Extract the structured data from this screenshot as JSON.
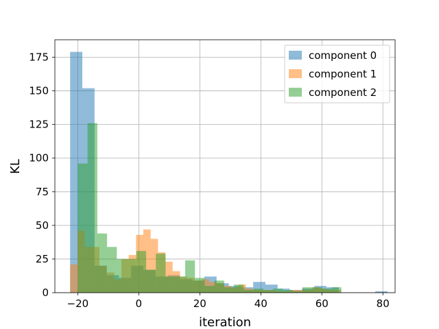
{
  "chart_data": {
    "type": "histogram",
    "title": "",
    "xlabel": "iteration",
    "ylabel": "KL",
    "xlim": [
      -27.5,
      84
    ],
    "ylim": [
      0,
      188
    ],
    "xticks": [
      -20,
      0,
      20,
      40,
      60,
      80
    ],
    "yticks": [
      0,
      25,
      50,
      75,
      100,
      125,
      150,
      175
    ],
    "grid": true,
    "legend": "top-right",
    "alpha": 0.5,
    "series": [
      {
        "name": "component 0",
        "color": "#1f77b4",
        "bins": [
          [
            -22.5,
            -18.5
          ],
          [
            -18.5,
            -14.5
          ],
          [
            -14.5,
            -10.5
          ],
          [
            -10.5,
            -6.5
          ],
          [
            -6.5,
            -2.5
          ],
          [
            -2.5,
            1.5
          ],
          [
            1.5,
            5.5
          ],
          [
            5.5,
            9.5
          ],
          [
            9.5,
            13.5
          ],
          [
            13.5,
            17.5
          ],
          [
            17.5,
            21.5
          ],
          [
            21.5,
            25.5
          ],
          [
            25.5,
            29.5
          ],
          [
            29.5,
            33.5
          ],
          [
            33.5,
            37.5
          ],
          [
            37.5,
            41.5
          ],
          [
            41.5,
            45.5
          ],
          [
            45.5,
            49.5
          ],
          [
            49.5,
            53.5
          ],
          [
            53.5,
            57.5
          ],
          [
            57.5,
            61.5
          ],
          [
            61.5,
            65.5
          ],
          [
            65.5,
            69.5
          ],
          [
            69.5,
            73.5
          ],
          [
            73.5,
            77.5
          ],
          [
            77.5,
            81.5
          ]
        ],
        "values": [
          179,
          152,
          20,
          13,
          11,
          20,
          17,
          12,
          13,
          10,
          9,
          12,
          7,
          5,
          4,
          8,
          6,
          3,
          2,
          3,
          5,
          4,
          0,
          0,
          0,
          1
        ]
      },
      {
        "name": "component 1",
        "color": "#ff7f0e",
        "bins": [
          [
            -22.5,
            -20.1
          ],
          [
            -20.1,
            -17.7
          ],
          [
            -17.7,
            -15.3
          ],
          [
            -15.3,
            -12.9
          ],
          [
            -12.9,
            -10.5
          ],
          [
            -10.5,
            -8.1
          ],
          [
            -8.1,
            -5.7
          ],
          [
            -5.7,
            -3.3
          ],
          [
            -3.3,
            -0.9
          ],
          [
            -0.9,
            1.5
          ],
          [
            1.5,
            3.9
          ],
          [
            3.9,
            6.3
          ],
          [
            6.3,
            8.7
          ],
          [
            8.7,
            11.1
          ],
          [
            11.1,
            13.5
          ],
          [
            13.5,
            15.9
          ],
          [
            15.9,
            18.3
          ],
          [
            18.3,
            20.7
          ],
          [
            20.7,
            23.1
          ],
          [
            23.1,
            25.5
          ],
          [
            25.5,
            27.9
          ],
          [
            27.9,
            30.3
          ],
          [
            30.3,
            32.7
          ],
          [
            32.7,
            35.1
          ],
          [
            35.1,
            37.5
          ],
          [
            37.5,
            39.9
          ],
          [
            39.9,
            42.3
          ],
          [
            42.3,
            44.7
          ],
          [
            44.7,
            47.1
          ],
          [
            47.1,
            49.5
          ],
          [
            49.5,
            51.9
          ],
          [
            51.9,
            54.3
          ],
          [
            54.3,
            56.7
          ],
          [
            56.7,
            59.1
          ],
          [
            59.1,
            61.5
          ],
          [
            61.5,
            63.9
          ],
          [
            63.9,
            66.3
          ]
        ],
        "values": [
          21,
          46,
          34,
          34,
          20,
          15,
          10,
          25,
          28,
          43,
          47,
          40,
          30,
          23,
          16,
          12,
          11,
          9,
          10,
          8,
          7,
          5,
          4,
          6,
          3,
          2,
          2,
          2,
          1,
          1,
          2,
          2,
          2,
          4,
          3,
          2,
          2
        ]
      },
      {
        "name": "component 2",
        "color": "#2ca02c",
        "bins": [
          [
            -20,
            -16.8
          ],
          [
            -16.8,
            -13.6
          ],
          [
            -13.6,
            -10.4
          ],
          [
            -10.4,
            -7.2
          ],
          [
            -7.2,
            -4.0
          ],
          [
            -4.0,
            -0.8
          ],
          [
            -0.8,
            2.4
          ],
          [
            2.4,
            5.6
          ],
          [
            5.6,
            8.8
          ],
          [
            8.8,
            12.0
          ],
          [
            12.0,
            15.2
          ],
          [
            15.2,
            18.4
          ],
          [
            18.4,
            21.6
          ],
          [
            21.6,
            24.8
          ],
          [
            24.8,
            28.0
          ],
          [
            28.0,
            31.2
          ],
          [
            31.2,
            34.4
          ],
          [
            34.4,
            37.6
          ],
          [
            37.6,
            40.8
          ],
          [
            40.8,
            44.0
          ],
          [
            44.0,
            47.2
          ],
          [
            47.2,
            50.4
          ],
          [
            50.4,
            53.6
          ],
          [
            53.6,
            56.8
          ],
          [
            56.8,
            60.0
          ],
          [
            60.0,
            63.2
          ],
          [
            63.2,
            66.4
          ]
        ],
        "values": [
          96,
          126,
          44,
          34,
          25,
          25,
          31,
          17,
          29,
          12,
          12,
          24,
          11,
          5,
          9,
          4,
          6,
          2,
          3,
          2,
          3,
          2,
          1,
          4,
          4,
          3,
          4
        ]
      }
    ]
  }
}
